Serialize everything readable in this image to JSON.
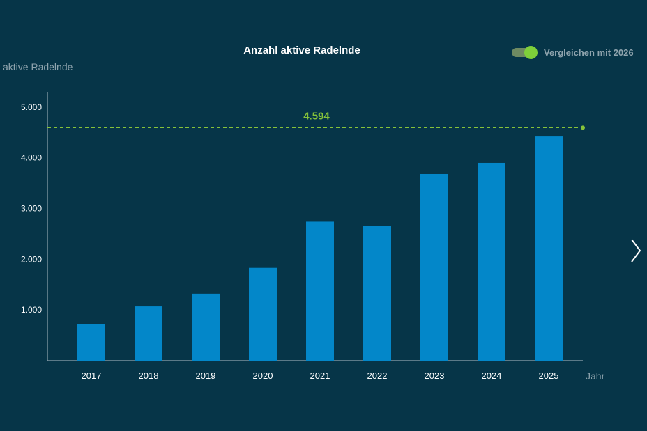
{
  "toggle": {
    "label": "Vergleichen mit 2026",
    "on": true
  },
  "colors": {
    "background": "#063548",
    "bar": "#0387c9",
    "reference": "#86c23a",
    "axis_text": "#ffffff",
    "muted_text": "#8fa4ae"
  },
  "icons": {
    "next": "chevron-right-icon"
  },
  "chart_data": {
    "type": "bar",
    "title": "Anzahl aktive Radelnde",
    "ylabel": "aktive Radelnde",
    "xlabel": "Jahr",
    "categories": [
      "2017",
      "2018",
      "2019",
      "2020",
      "2021",
      "2022",
      "2023",
      "2024",
      "2025"
    ],
    "values": [
      720,
      1070,
      1320,
      1830,
      2740,
      2660,
      3680,
      3900,
      4420
    ],
    "ylim": [
      0,
      5300
    ],
    "yticks": [
      1000,
      2000,
      3000,
      4000,
      5000
    ],
    "ytick_labels": [
      "1.000",
      "2.000",
      "3.000",
      "4.000",
      "5.000"
    ],
    "reference_line": {
      "value": 4594,
      "label": "4.594"
    },
    "grid": false,
    "legend": "none"
  }
}
